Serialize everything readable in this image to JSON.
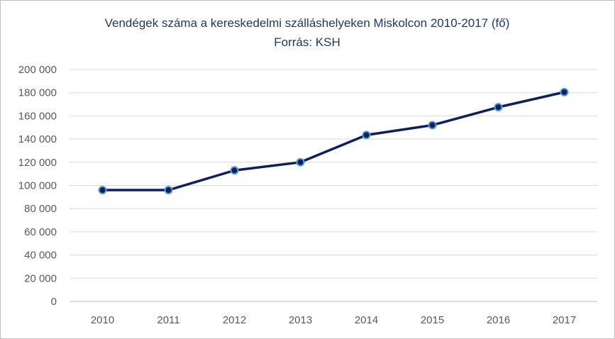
{
  "chart_data": {
    "type": "line",
    "title": "Vendégek száma a kereskedelmi szálláshelyeken Miskolcon 2010-2017 (fő)",
    "subtitle": "Forrás: KSH",
    "xlabel": "",
    "ylabel": "",
    "categories": [
      "2010",
      "2011",
      "2012",
      "2013",
      "2014",
      "2015",
      "2016",
      "2017"
    ],
    "series": [
      {
        "values": [
          96000,
          96000,
          113000,
          120000,
          143500,
          152000,
          167500,
          180500
        ]
      }
    ],
    "ylim": [
      0,
      200000
    ],
    "yticks": [
      0,
      20000,
      40000,
      60000,
      80000,
      100000,
      120000,
      140000,
      160000,
      180000,
      200000
    ],
    "ytick_labels": [
      "0",
      "20 000",
      "40 000",
      "60 000",
      "80 000",
      "100 000",
      "120 000",
      "140 000",
      "160 000",
      "180 000",
      "200 000"
    ],
    "grid": true,
    "legend": "none",
    "colors": {
      "line": "#0e1f5b",
      "marker_fill": "#0e1f5b",
      "marker_stroke": "#5b9bd5",
      "title": "#1f3864",
      "grid": "#d9d9d9",
      "tick_text": "#595959"
    }
  }
}
